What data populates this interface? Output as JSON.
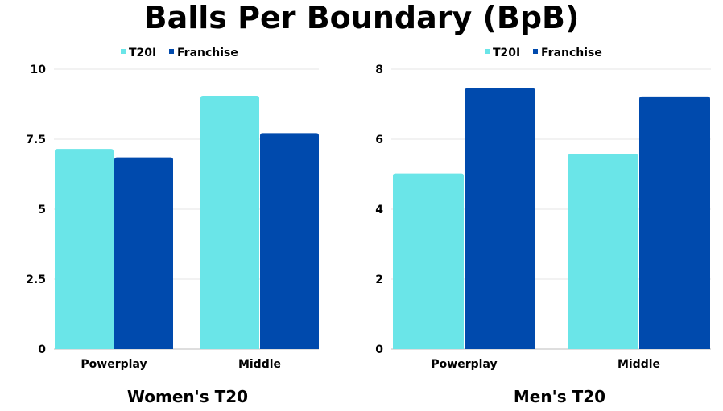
{
  "title": "Balls Per Boundary (BpB)",
  "chart_data": [
    {
      "type": "bar",
      "title": "Women's T20",
      "categories": [
        "Powerplay",
        "Middle"
      ],
      "series": [
        {
          "name": "T20I",
          "color": "#6ae5e8",
          "values": [
            7.15,
            9.05
          ]
        },
        {
          "name": "Franchise",
          "color": "#004aad",
          "values": [
            6.85,
            7.72
          ]
        }
      ],
      "ylim": [
        0,
        10
      ],
      "yticks": [
        0,
        2.5,
        5,
        7.5,
        10
      ],
      "ytick_labels": [
        "0",
        "2.5",
        "5",
        "7.5",
        "10"
      ],
      "xlabel": "",
      "ylabel": "",
      "legend": "top-center"
    },
    {
      "type": "bar",
      "title": "Men's T20",
      "categories": [
        "Powerplay",
        "Middle"
      ],
      "series": [
        {
          "name": "T20I",
          "color": "#6ae5e8",
          "values": [
            5.02,
            5.57
          ]
        },
        {
          "name": "Franchise",
          "color": "#004aad",
          "values": [
            7.45,
            7.22
          ]
        }
      ],
      "ylim": [
        0,
        8
      ],
      "yticks": [
        0,
        2,
        4,
        6,
        8
      ],
      "ytick_labels": [
        "0",
        "2",
        "4",
        "6",
        "8"
      ],
      "xlabel": "",
      "ylabel": "",
      "legend": "top-center"
    }
  ]
}
